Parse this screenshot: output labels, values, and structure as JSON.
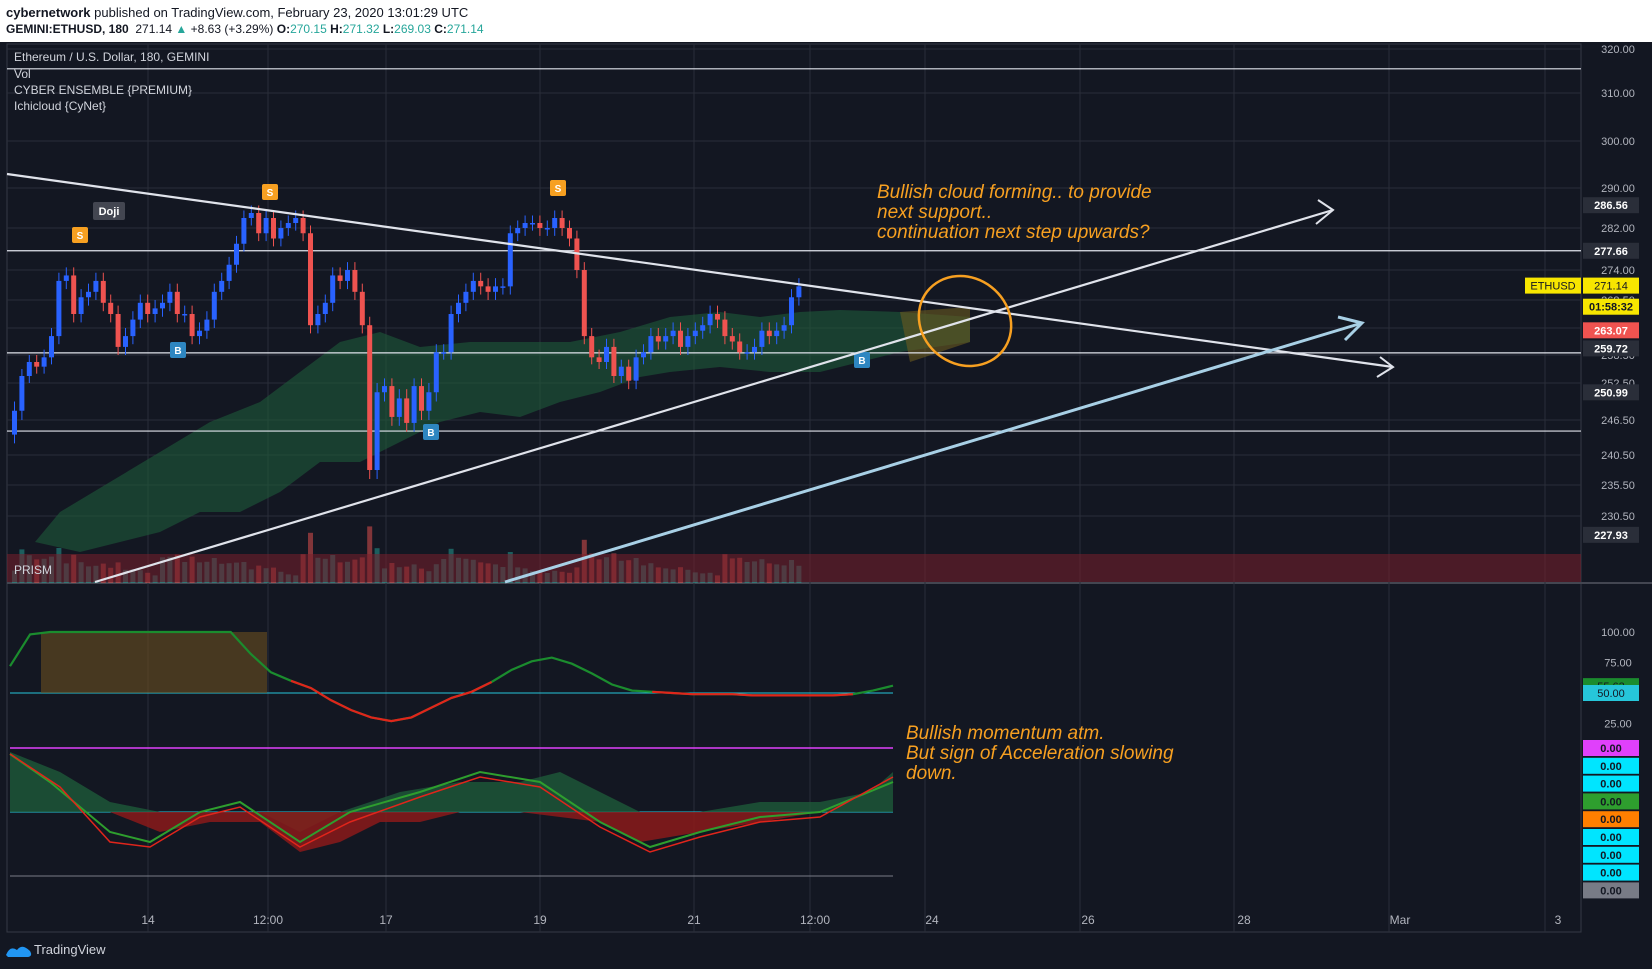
{
  "header": {
    "publisher": "cybernetwork",
    "published_text": "published on TradingView.com, February 23, 2020 13:01:29 UTC",
    "symbol": "GEMINI:ETHUSD, 180",
    "last": "271.14",
    "change": "+8.63 (+3.29%)",
    "o_label": "O:",
    "o": "270.15",
    "h_label": "H:",
    "h": "271.32",
    "l_label": "L:",
    "l": "269.03",
    "c_label": "C:",
    "c": "271.14"
  },
  "legend": {
    "main": "Ethereum / U.S. Dollar, 180, GEMINI",
    "items": [
      "Vol",
      "CYBER ENSEMBLE {PREMIUM}",
      "Ichicloud {CyNet}"
    ],
    "prism": "PRISM"
  },
  "annotations": {
    "cloud": [
      "Bullish cloud forming.. to provide",
      "next support..",
      "continuation next step upwards?"
    ],
    "momentum": [
      "Bullish momentum atm.",
      "But sign of Acceleration slowing",
      "down."
    ]
  },
  "footer": {
    "brand": "TradingView"
  },
  "colors": {
    "background": "#131722",
    "up_candle": "#2962ff",
    "down_candle": "#ef5350",
    "accent_orange": "#f7a021",
    "cloud_green": "#1e5a3a",
    "grid": "#2a2e39"
  },
  "chart_data": [
    {
      "type": "candlestick",
      "title": "Ethereum / U.S. Dollar, 180, GEMINI",
      "x_ticks": [
        "14",
        "12:00",
        "17",
        "19",
        "21",
        "12:00",
        "24",
        "26",
        "28",
        "Mar",
        "3"
      ],
      "y_ticks": [
        230.5,
        235.5,
        240.5,
        246.5,
        252.5,
        258.5,
        263.5,
        268.5,
        274.0,
        282.0,
        290.0,
        300.0,
        310.0,
        320.0
      ],
      "ylim": [
        227.5,
        321
      ],
      "price_badges": [
        {
          "label": "286.56",
          "value": 286.56,
          "kind": "level"
        },
        {
          "label": "277.66",
          "value": 277.66,
          "kind": "level"
        },
        {
          "label": "ETHUSD",
          "value": 271.14,
          "text": "271.14",
          "kind": "last"
        },
        {
          "label": "01:58:32",
          "value": 267.3,
          "kind": "timer"
        },
        {
          "label": "263.07",
          "value": 263.07,
          "kind": "red"
        },
        {
          "label": "259.72",
          "value": 259.72,
          "kind": "level"
        },
        {
          "label": "250.99",
          "value": 250.99,
          "kind": "level"
        },
        {
          "label": "227.93",
          "value": 227.93,
          "kind": "level"
        }
      ],
      "horizontal_levels": [
        315.5,
        277.66,
        258.9,
        244.6
      ],
      "closes": [
        248,
        254,
        257,
        256,
        258,
        262,
        272,
        273,
        266,
        269,
        270,
        272,
        268,
        266,
        260,
        262,
        265,
        268,
        266,
        267,
        268,
        270,
        266,
        266,
        262,
        263,
        265,
        270,
        272,
        275,
        279,
        284,
        285,
        281,
        284,
        280,
        282,
        283,
        284,
        281,
        264,
        266,
        268,
        273,
        272,
        274,
        270,
        264,
        238,
        251,
        252,
        247,
        250,
        246,
        252,
        248,
        251,
        259,
        259,
        266,
        268,
        270,
        272,
        271,
        270,
        271,
        271,
        281,
        282,
        283,
        283,
        282,
        282,
        284,
        282,
        280,
        274,
        262,
        258,
        257,
        260,
        254,
        256,
        253,
        258,
        259,
        262,
        261,
        262,
        263,
        260,
        262,
        263,
        264,
        266,
        265,
        262,
        261,
        259,
        259,
        260,
        263,
        262,
        263,
        264,
        269,
        271
      ]
    },
    {
      "type": "line",
      "title": "PRISM",
      "y_ticks": [
        100.0,
        75.0,
        50.0,
        25.0
      ],
      "values_badge": [
        {
          "value": 55.63,
          "color": "#1b8c2e"
        },
        {
          "value": 50.0,
          "color": "#26c6da"
        }
      ],
      "series": [
        {
          "values": [
            72,
            98,
            100,
            100,
            100,
            100,
            100,
            100,
            100,
            100,
            100,
            100,
            82,
            67,
            60,
            54,
            44,
            36,
            30,
            27,
            30,
            38,
            46,
            51,
            59,
            69,
            76,
            79,
            74,
            66,
            57,
            52,
            51,
            50,
            49,
            49,
            49,
            48,
            48,
            48,
            48,
            48,
            49,
            52,
            56
          ]
        }
      ]
    },
    {
      "type": "area",
      "title": "",
      "badges": [
        "0.00",
        "0.00",
        "0.00",
        "0.00",
        "0.00",
        "0.00",
        "0.00",
        "0.00",
        "0.00"
      ]
    }
  ]
}
